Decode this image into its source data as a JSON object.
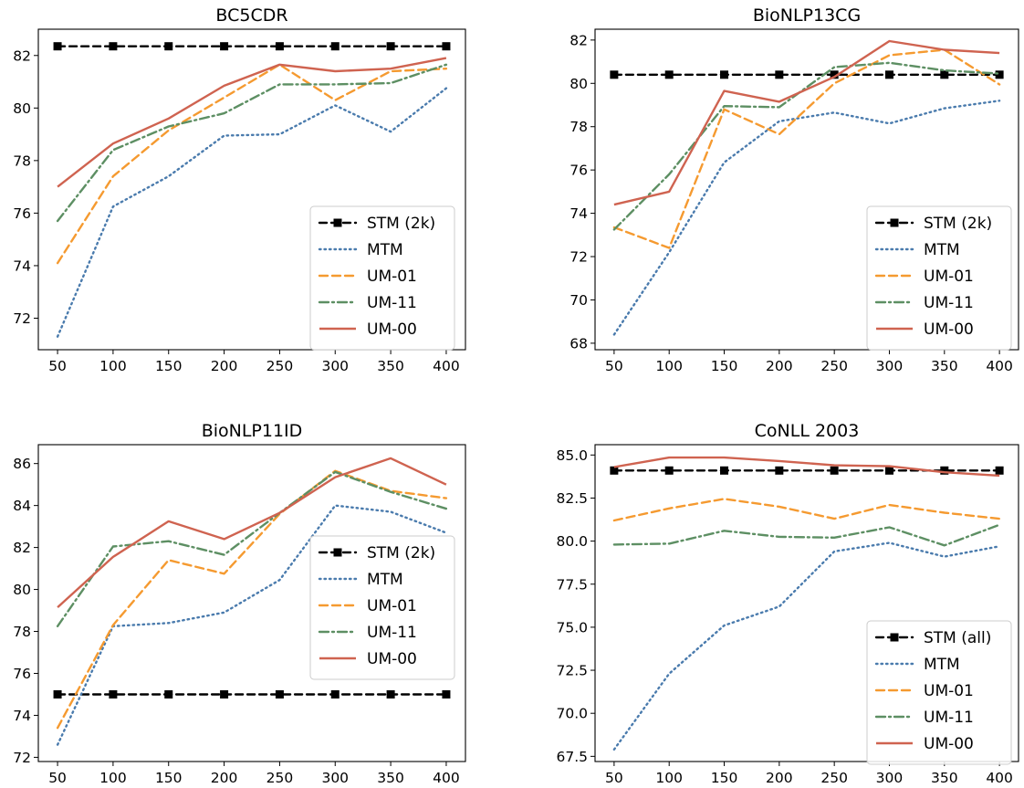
{
  "chart_data": [
    {
      "type": "line",
      "title": "BC5CDR",
      "x": [
        50,
        100,
        150,
        200,
        250,
        300,
        350,
        400
      ],
      "xticks": [
        "50",
        "100",
        "150",
        "200",
        "250",
        "300",
        "350",
        "400"
      ],
      "ylim": [
        70.8,
        83.0
      ],
      "yticks": [
        72,
        74,
        76,
        78,
        80,
        82
      ],
      "ytick_labels": [
        "72",
        "74",
        "76",
        "78",
        "80",
        "82"
      ],
      "legend_position": "lower-right",
      "series": [
        {
          "name": "STM (2k)",
          "style": "stm",
          "values": [
            82.35,
            82.35,
            82.35,
            82.35,
            82.35,
            82.35,
            82.35,
            82.35
          ]
        },
        {
          "name": "MTM",
          "style": "mtm",
          "values": [
            71.3,
            76.25,
            77.4,
            78.95,
            79.0,
            80.1,
            79.1,
            80.75
          ]
        },
        {
          "name": "UM-01",
          "style": "um01",
          "values": [
            74.1,
            77.4,
            79.15,
            80.4,
            81.65,
            80.3,
            81.4,
            81.5
          ]
        },
        {
          "name": "UM-11",
          "style": "um11",
          "values": [
            75.7,
            78.4,
            79.3,
            79.8,
            80.9,
            80.9,
            80.95,
            81.65
          ]
        },
        {
          "name": "UM-00",
          "style": "um00",
          "values": [
            77.0,
            78.65,
            79.6,
            80.85,
            81.65,
            81.4,
            81.5,
            81.9
          ]
        }
      ]
    },
    {
      "type": "line",
      "title": "BioNLP13CG",
      "x": [
        50,
        100,
        150,
        200,
        250,
        300,
        350,
        400
      ],
      "xticks": [
        "50",
        "100",
        "150",
        "200",
        "250",
        "300",
        "350",
        "400"
      ],
      "ylim": [
        67.7,
        82.5
      ],
      "yticks": [
        68,
        70,
        72,
        74,
        76,
        78,
        80,
        82
      ],
      "ytick_labels": [
        "68",
        "70",
        "72",
        "74",
        "76",
        "78",
        "80",
        "82"
      ],
      "legend_position": "lower-right",
      "series": [
        {
          "name": "STM (2k)",
          "style": "stm",
          "values": [
            80.4,
            80.4,
            80.4,
            80.4,
            80.4,
            80.4,
            80.4,
            80.4
          ]
        },
        {
          "name": "MTM",
          "style": "mtm",
          "values": [
            68.4,
            72.2,
            76.35,
            78.25,
            78.65,
            78.15,
            78.85,
            79.2
          ]
        },
        {
          "name": "UM-01",
          "style": "um01",
          "values": [
            73.35,
            72.4,
            78.8,
            77.65,
            80.0,
            81.3,
            81.55,
            79.95
          ]
        },
        {
          "name": "UM-11",
          "style": "um11",
          "values": [
            73.25,
            75.8,
            78.95,
            78.9,
            80.75,
            80.95,
            80.6,
            80.45
          ]
        },
        {
          "name": "UM-00",
          "style": "um00",
          "values": [
            74.4,
            75.0,
            79.65,
            79.15,
            80.3,
            81.95,
            81.55,
            81.4
          ]
        }
      ]
    },
    {
      "type": "line",
      "title": "BioNLP11ID",
      "x": [
        50,
        100,
        150,
        200,
        250,
        300,
        350,
        400
      ],
      "xticks": [
        "50",
        "100",
        "150",
        "200",
        "250",
        "300",
        "350",
        "400"
      ],
      "ylim": [
        71.8,
        86.9
      ],
      "yticks": [
        72,
        74,
        76,
        78,
        80,
        82,
        84,
        86
      ],
      "ytick_labels": [
        "72",
        "74",
        "76",
        "78",
        "80",
        "82",
        "84",
        "86"
      ],
      "legend_position": "center-right",
      "series": [
        {
          "name": "STM (2k)",
          "style": "stm",
          "values": [
            75.0,
            75.0,
            75.0,
            75.0,
            75.0,
            75.0,
            75.0,
            75.0
          ]
        },
        {
          "name": "MTM",
          "style": "mtm",
          "values": [
            72.6,
            78.25,
            78.4,
            78.9,
            80.45,
            84.0,
            83.7,
            82.7
          ]
        },
        {
          "name": "UM-01",
          "style": "um01",
          "values": [
            73.4,
            78.3,
            81.4,
            80.75,
            83.6,
            85.65,
            84.7,
            84.35
          ]
        },
        {
          "name": "UM-11",
          "style": "um11",
          "values": [
            78.25,
            82.05,
            82.3,
            81.65,
            83.65,
            85.6,
            84.65,
            83.85
          ]
        },
        {
          "name": "UM-00",
          "style": "um00",
          "values": [
            79.15,
            81.55,
            83.25,
            82.4,
            83.65,
            85.35,
            86.25,
            85.0
          ]
        }
      ]
    },
    {
      "type": "line",
      "title": "CoNLL 2003",
      "x": [
        50,
        100,
        150,
        200,
        250,
        300,
        350,
        400
      ],
      "xticks": [
        "50",
        "100",
        "150",
        "200",
        "250",
        "300",
        "350",
        "400"
      ],
      "ylim": [
        67.2,
        85.6
      ],
      "yticks": [
        67.5,
        70.0,
        72.5,
        75.0,
        77.5,
        80.0,
        82.5,
        85.0
      ],
      "ytick_labels": [
        "67.5",
        "70.0",
        "72.5",
        "75.0",
        "77.5",
        "80.0",
        "82.5",
        "85.0"
      ],
      "legend_position": "lower-right",
      "series": [
        {
          "name": "STM (all)",
          "style": "stm",
          "values": [
            84.1,
            84.1,
            84.1,
            84.1,
            84.1,
            84.1,
            84.1,
            84.1
          ]
        },
        {
          "name": "MTM",
          "style": "mtm",
          "values": [
            67.9,
            72.3,
            75.1,
            76.2,
            79.4,
            79.9,
            79.1,
            79.7
          ]
        },
        {
          "name": "UM-01",
          "style": "um01",
          "values": [
            81.2,
            81.9,
            82.45,
            82.0,
            81.3,
            82.1,
            81.65,
            81.3
          ]
        },
        {
          "name": "UM-11",
          "style": "um11",
          "values": [
            79.8,
            79.85,
            80.6,
            80.25,
            80.2,
            80.8,
            79.75,
            80.95
          ]
        },
        {
          "name": "UM-00",
          "style": "um00",
          "values": [
            84.3,
            84.85,
            84.85,
            84.65,
            84.4,
            84.35,
            84.0,
            83.8
          ]
        }
      ]
    }
  ],
  "styles": {
    "stm": {
      "color": "#000000",
      "dash": "8,5",
      "width": 2.4,
      "marker": "square"
    },
    "mtm": {
      "color": "#4a7bad",
      "dash": "1.5,4",
      "width": 2.4,
      "marker": "none"
    },
    "um01": {
      "color": "#f59a30",
      "dash": "9,5",
      "width": 2.4,
      "marker": "none"
    },
    "um11": {
      "color": "#5d8f63",
      "dash": "10,4,2,4",
      "width": 2.4,
      "marker": "none"
    },
    "um00": {
      "color": "#cf6350",
      "dash": "",
      "width": 2.4,
      "marker": "none"
    }
  }
}
